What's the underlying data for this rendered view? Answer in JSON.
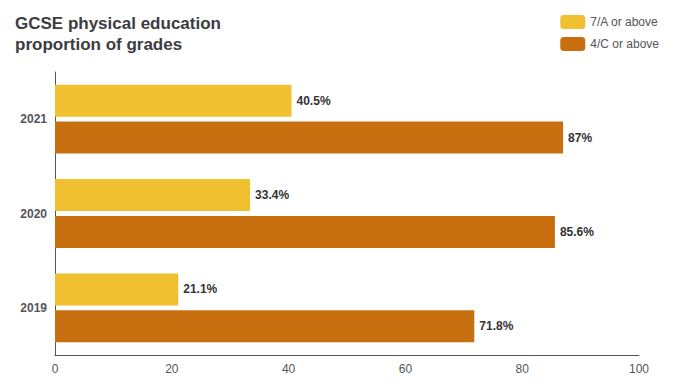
{
  "chart_data": {
    "type": "bar",
    "orientation": "horizontal",
    "title": "GCSE physical education\nproportion of grades",
    "categories": [
      "2021",
      "2020",
      "2019"
    ],
    "series": [
      {
        "name": "7/A or above",
        "color": "#f0c030",
        "values": [
          40.5,
          33.4,
          21.1
        ],
        "value_labels": [
          "40.5%",
          "33.4%",
          "21.1%"
        ]
      },
      {
        "name": "4/C or above",
        "color": "#c87010",
        "values": [
          87.0,
          85.6,
          71.8
        ],
        "value_labels": [
          "87%",
          "85.6%",
          "71.8%"
        ]
      }
    ],
    "xlim": [
      0,
      100
    ],
    "xticks": [
      0,
      20,
      40,
      60,
      80,
      100
    ],
    "grid": false,
    "legend": "top right",
    "data_labels": true
  }
}
